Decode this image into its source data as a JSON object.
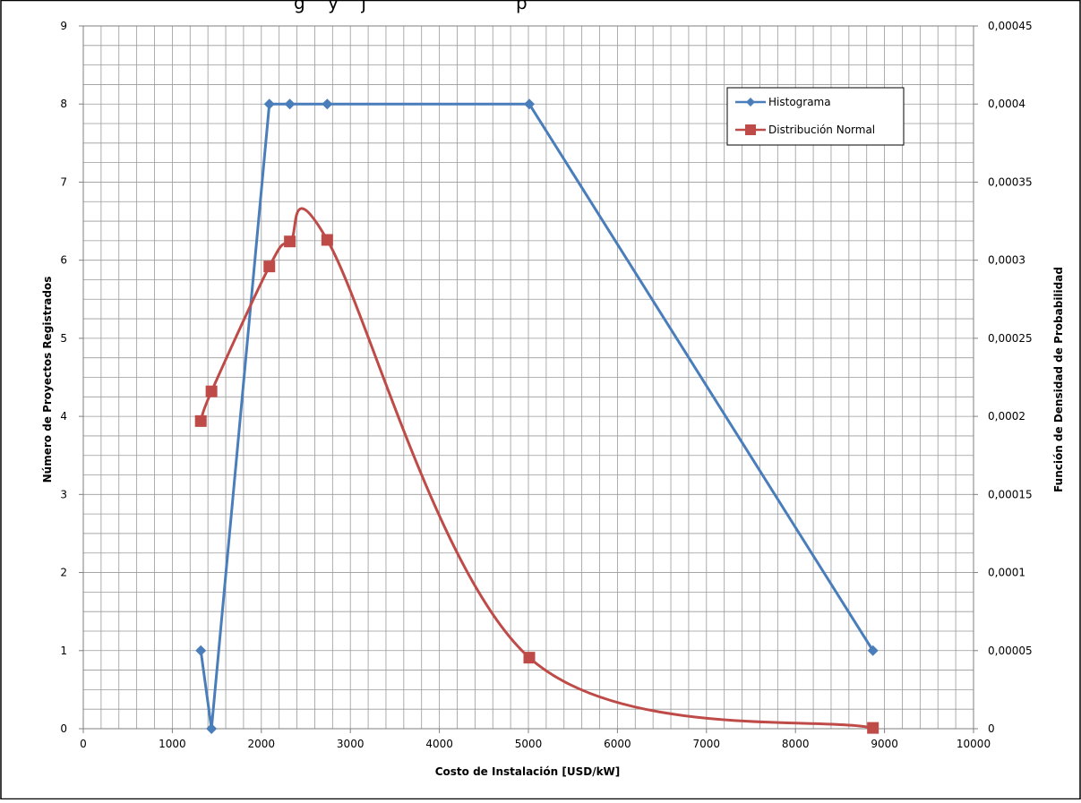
{
  "chart_data": {
    "type": "line",
    "title": "",
    "title_fragment": "g    y    j",
    "title_suffix": "p",
    "xlabel": "Costo de Instalación [USD/kW]",
    "ylabel": "Número de Proyectos Registrados",
    "y2label": "Función de Densidad de Probabilidad",
    "xlim": [
      0,
      10000
    ],
    "ylim": [
      0,
      9
    ],
    "y2lim": [
      0,
      0.00045
    ],
    "x_ticks": [
      "0",
      "1000",
      "2000",
      "3000",
      "4000",
      "5000",
      "6000",
      "7000",
      "8000",
      "9000",
      "10000"
    ],
    "y_ticks": [
      "0",
      "1",
      "2",
      "3",
      "4",
      "5",
      "6",
      "7",
      "8",
      "9"
    ],
    "y2_ticks": [
      "0",
      "0,00005",
      "0,0001",
      "0,00015",
      "0,0002",
      "0,00025",
      "0,0003",
      "0,00035",
      "0,0004",
      "0,00045"
    ],
    "grid": true,
    "legend_position": "top-right",
    "series": [
      {
        "name": "Histograma",
        "axis": "left",
        "color": "#4a7ebb",
        "marker": "diamond",
        "smooth": false,
        "x": [
          1320,
          1440,
          2090,
          2320,
          2740,
          5010,
          8870
        ],
        "y": [
          1,
          0,
          8,
          8,
          8,
          8,
          1
        ]
      },
      {
        "name": "Distribución Normal",
        "axis": "right",
        "color": "#be4b48",
        "marker": "square",
        "smooth": true,
        "x": [
          1320,
          1440,
          2090,
          2320,
          2740,
          5010,
          8870
        ],
        "y": [
          0.000197,
          0.000216,
          0.000296,
          0.000312,
          0.000313,
          4.55e-05,
          5e-07
        ]
      }
    ]
  }
}
